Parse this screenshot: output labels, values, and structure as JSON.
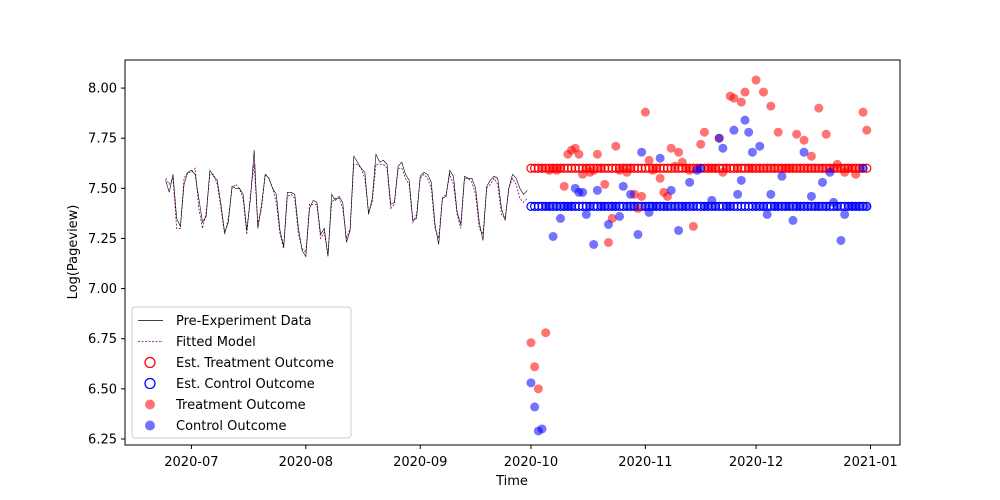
{
  "chart_data": {
    "type": "scatter",
    "title": "",
    "xlabel": "Time",
    "ylabel": "Log(Pageview)",
    "xlim": [
      "2020-06-13",
      "2021-01-09"
    ],
    "ylim": [
      6.22,
      8.14
    ],
    "x_ticks": [
      "2020-07-01",
      "2020-08-01",
      "2020-09-01",
      "2020-10-01",
      "2020-11-01",
      "2020-12-01",
      "2021-01-01"
    ],
    "x_tick_labels": [
      "2020-07",
      "2020-08",
      "2020-09",
      "2020-10",
      "2020-11",
      "2020-12",
      "2021-01"
    ],
    "y_ticks": [
      6.25,
      6.5,
      6.75,
      7.0,
      7.25,
      7.5,
      7.75,
      8.0
    ],
    "y_tick_labels": [
      "6.25",
      "6.50",
      "6.75",
      "7.00",
      "7.25",
      "7.50",
      "7.75",
      "8.00"
    ],
    "grid": false,
    "legend_position": "lower-left",
    "colors": {
      "pre": "#000000",
      "fitted": "#800080",
      "treatment": "#ff0000",
      "control": "#0000ff"
    },
    "pre_period": {
      "start": "2020-06-24",
      "end": "2020-09-30",
      "actual": [
        7.54,
        7.48,
        7.57,
        7.35,
        7.31,
        7.52,
        7.58,
        7.59,
        7.57,
        7.45,
        7.33,
        7.36,
        7.59,
        7.56,
        7.54,
        7.42,
        7.28,
        7.33,
        7.51,
        7.5,
        7.5,
        7.47,
        7.29,
        7.45,
        7.69,
        7.3,
        7.42,
        7.57,
        7.55,
        7.5,
        7.47,
        7.29,
        7.21,
        7.48,
        7.48,
        7.47,
        7.3,
        7.19,
        7.16,
        7.4,
        7.44,
        7.43,
        7.27,
        7.3,
        7.16,
        7.47,
        7.44,
        7.46,
        7.43,
        7.23,
        7.29,
        7.66,
        7.63,
        7.6,
        7.58,
        7.37,
        7.45,
        7.67,
        7.63,
        7.64,
        7.62,
        7.42,
        7.43,
        7.61,
        7.63,
        7.57,
        7.54,
        7.34,
        7.35,
        7.56,
        7.58,
        7.57,
        7.53,
        7.32,
        7.22,
        7.45,
        7.46,
        7.59,
        7.56,
        7.38,
        7.32,
        7.56,
        7.55,
        7.55,
        7.5,
        7.33,
        7.24,
        7.51,
        7.54,
        7.56,
        7.55,
        7.4,
        7.34,
        7.5,
        7.57,
        7.55,
        7.5,
        7.47,
        7.49
      ],
      "fitted": [
        7.55,
        7.52,
        7.55,
        7.3,
        7.3,
        7.55,
        7.58,
        7.58,
        7.6,
        7.4,
        7.3,
        7.38,
        7.57,
        7.57,
        7.52,
        7.4,
        7.27,
        7.35,
        7.5,
        7.52,
        7.5,
        7.45,
        7.27,
        7.47,
        7.62,
        7.32,
        7.4,
        7.57,
        7.55,
        7.5,
        7.43,
        7.27,
        7.2,
        7.46,
        7.47,
        7.45,
        7.27,
        7.2,
        7.18,
        7.42,
        7.42,
        7.42,
        7.25,
        7.28,
        7.17,
        7.43,
        7.45,
        7.45,
        7.4,
        7.25,
        7.3,
        7.62,
        7.62,
        7.6,
        7.55,
        7.38,
        7.43,
        7.62,
        7.62,
        7.62,
        7.6,
        7.4,
        7.42,
        7.6,
        7.6,
        7.55,
        7.52,
        7.33,
        7.37,
        7.55,
        7.57,
        7.55,
        7.5,
        7.3,
        7.25,
        7.45,
        7.47,
        7.57,
        7.52,
        7.37,
        7.3,
        7.55,
        7.55,
        7.53,
        7.47,
        7.3,
        7.27,
        7.5,
        7.52,
        7.55,
        7.52,
        7.37,
        7.35,
        7.5,
        7.55,
        7.52,
        7.45,
        7.43,
        7.45
      ]
    },
    "post_period": {
      "start": "2020-10-01",
      "days": 92,
      "est_treatment": 7.6,
      "est_control": 7.41,
      "treatment": [
        6.73,
        6.61,
        6.5,
        7.6,
        6.78,
        7.59,
        7.6,
        7.59,
        7.6,
        7.51,
        7.67,
        7.69,
        7.7,
        7.67,
        7.57,
        7.6,
        7.58,
        7.59,
        7.67,
        7.6,
        7.52,
        7.23,
        7.35,
        7.71,
        7.59,
        7.6,
        7.58,
        7.6,
        7.47,
        7.4,
        7.46,
        7.88,
        7.64,
        7.59,
        7.6,
        7.55,
        7.48,
        7.46,
        7.7,
        7.61,
        7.68,
        7.63,
        7.6,
        7.59,
        7.31,
        7.6,
        7.72,
        7.78,
        7.6,
        7.6,
        7.6,
        7.75,
        7.58,
        7.6,
        7.96,
        7.95,
        7.6,
        7.93,
        7.98,
        7.6,
        7.6,
        8.04,
        7.6,
        7.98,
        7.6,
        7.91,
        7.6,
        7.78,
        7.6,
        7.6,
        7.6,
        7.6,
        7.77,
        7.6,
        7.74,
        7.6,
        7.66,
        7.6,
        7.9,
        7.6,
        7.77,
        7.6,
        7.6,
        7.62,
        7.6,
        7.58,
        7.6,
        7.6,
        7.57,
        7.6,
        7.88,
        7.79
      ],
      "control": [
        6.53,
        6.41,
        6.29,
        6.3,
        7.41,
        7.41,
        7.26,
        7.41,
        7.35,
        7.41,
        7.41,
        7.41,
        7.5,
        7.48,
        7.48,
        7.37,
        7.41,
        7.22,
        7.49,
        7.41,
        7.41,
        7.32,
        7.41,
        7.41,
        7.36,
        7.51,
        7.41,
        7.47,
        7.41,
        7.27,
        7.68,
        7.41,
        7.38,
        7.41,
        7.41,
        7.65,
        7.41,
        7.41,
        7.49,
        7.41,
        7.29,
        7.41,
        7.41,
        7.53,
        7.41,
        7.59,
        7.6,
        7.41,
        7.41,
        7.44,
        7.41,
        7.75,
        7.7,
        7.41,
        7.41,
        7.79,
        7.47,
        7.54,
        7.84,
        7.78,
        7.68,
        7.41,
        7.71,
        7.41,
        7.37,
        7.47,
        7.41,
        7.41,
        7.56,
        7.41,
        7.41,
        7.34,
        7.41,
        7.41,
        7.68,
        7.41,
        7.46,
        7.41,
        7.41,
        7.53,
        7.41,
        7.58,
        7.43,
        7.41,
        7.24,
        7.37,
        7.41,
        7.41,
        7.41,
        7.41,
        7.6,
        7.41
      ]
    },
    "legend": [
      {
        "label": "Pre-Experiment Data",
        "kind": "line"
      },
      {
        "label": "Fitted Model",
        "kind": "dashed"
      },
      {
        "label": "Est. Treatment Outcome",
        "kind": "ring-red"
      },
      {
        "label": "Est. Control Outcome",
        "kind": "ring-blue"
      },
      {
        "label": "Treatment Outcome",
        "kind": "dot-red"
      },
      {
        "label": "Control Outcome",
        "kind": "dot-blue"
      }
    ]
  }
}
